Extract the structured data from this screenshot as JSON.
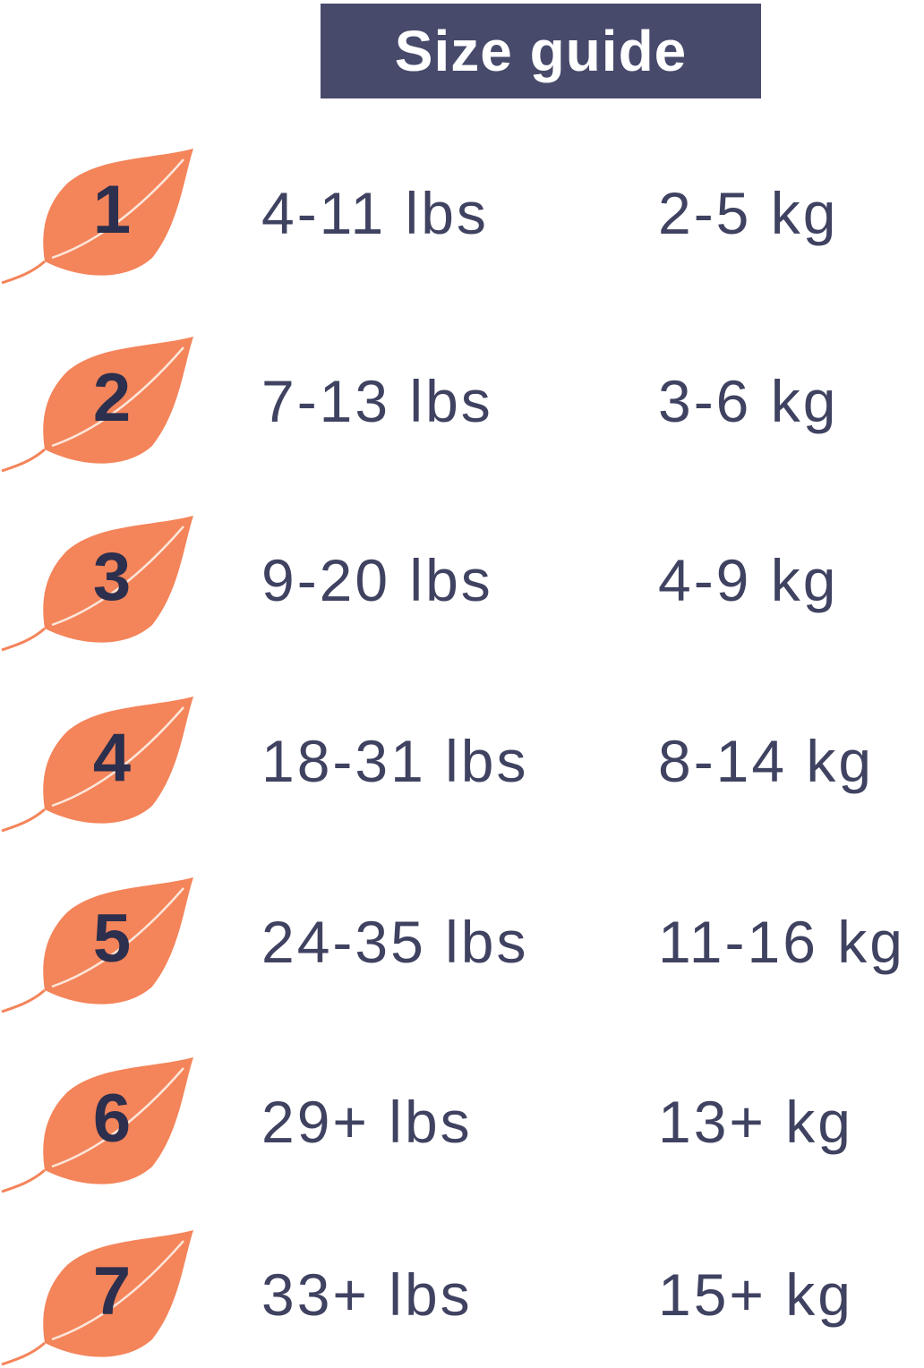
{
  "title": "Size guide",
  "colors": {
    "leaf": "#F4845A",
    "title_bg": "#474a6b",
    "text": "#3f4260",
    "number": "#2c2f4d"
  },
  "icon": "leaf-icon",
  "sizes": [
    {
      "size": "1",
      "lbs": "4-11 lbs",
      "kg": "2-5 kg"
    },
    {
      "size": "2",
      "lbs": "7-13 lbs",
      "kg": "3-6 kg"
    },
    {
      "size": "3",
      "lbs": "9-20 lbs",
      "kg": "4-9 kg"
    },
    {
      "size": "4",
      "lbs": "18-31 lbs",
      "kg": "8-14 kg"
    },
    {
      "size": "5",
      "lbs": "24-35 lbs",
      "kg": "11-16 kg"
    },
    {
      "size": "6",
      "lbs": "29+ lbs",
      "kg": "13+ kg"
    },
    {
      "size": "7",
      "lbs": "33+ lbs",
      "kg": "15+ kg"
    }
  ]
}
